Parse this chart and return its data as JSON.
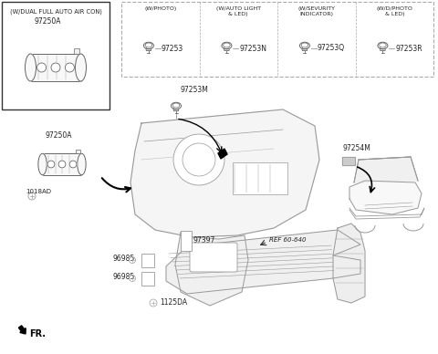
{
  "bg_color": "#ffffff",
  "line_color": "#999999",
  "dark_color": "#333333",
  "text_color": "#222222",
  "box1_label": "(W/DUAL FULL AUTO AIR CON)",
  "box1_part": "97250A",
  "sections": [
    {
      "label": "(W/PHOTO)",
      "part": "97253"
    },
    {
      "label": "(W/AUTO LIGHT\n& LED)",
      "part": "97253N"
    },
    {
      "label": "(W/SEVURITY\nINDICATOR)",
      "part": "97253Q"
    },
    {
      "label": "(W/D/PHOTO\n& LED)",
      "part": "97253R"
    }
  ],
  "center_part": "97253M",
  "left_part1": "97250A",
  "left_part2": "1018AD",
  "right_part": "97254M",
  "bottom_parts": [
    "97397",
    "96985",
    "96985",
    "1125DA"
  ],
  "ref_label": "REF 60-640",
  "fr_label": "FR."
}
